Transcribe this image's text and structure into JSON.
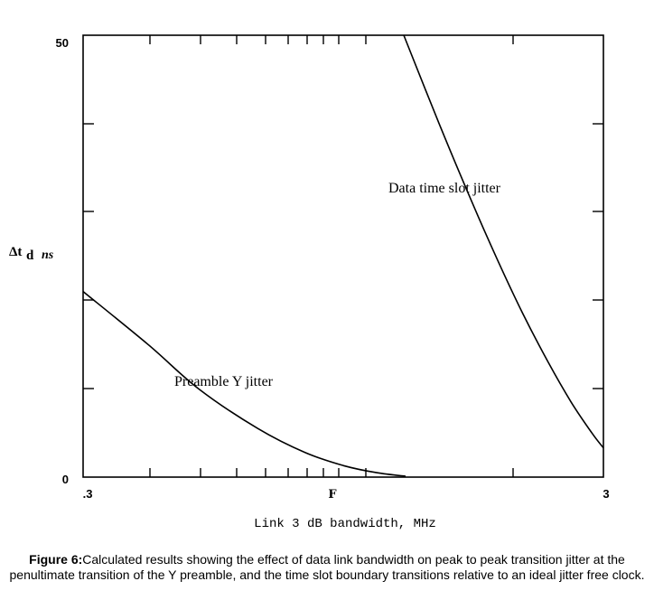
{
  "chart_data": {
    "type": "line",
    "xlabel": "Link 3 dB bandwidth, MHz",
    "ylabel": "ns",
    "x_ticks": [
      ".3",
      "F",
      "3"
    ],
    "y_ticks": [
      "0",
      "50"
    ],
    "ylim": [
      0,
      50
    ],
    "grid": false,
    "series": [
      {
        "name": "Data time slot jitter",
        "x": [
          1.24,
          1.45,
          1.68,
          1.88,
          2.1,
          2.35,
          2.6,
          2.85,
          3.0
        ],
        "y": [
          50,
          40,
          31,
          24.5,
          18.5,
          13,
          8.5,
          5,
          3.3
        ]
      },
      {
        "name": "Preamble Y jitter",
        "x": [
          0.3,
          0.4,
          0.5,
          0.65,
          0.8,
          0.95,
          1.1,
          1.25
        ],
        "y": [
          21,
          15,
          10,
          5.5,
          2.8,
          1.3,
          0.5,
          0.1
        ]
      }
    ]
  },
  "caption": {
    "figure_label": "Figure 6:",
    "text": "Calculated results showing the effect of data link bandwidth on peak to peak transition jitter at the penultimate transition of the Y preamble, and the time slot boundary transitions relative to an ideal jitter free clock."
  }
}
